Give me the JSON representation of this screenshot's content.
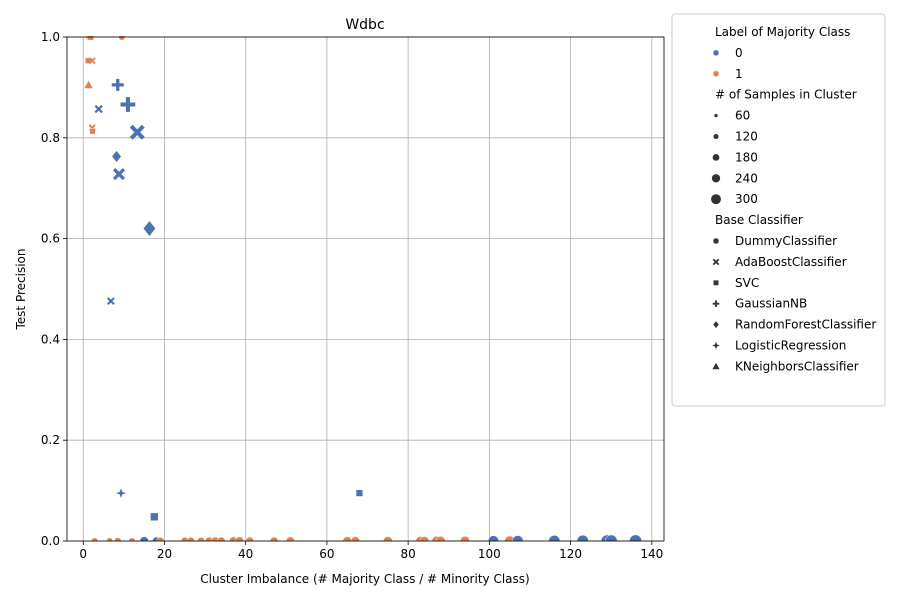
{
  "chart_data": {
    "type": "scatter",
    "title": "Wdbc",
    "xlabel": "Cluster Imbalance (# Majority Class / # Minority Class)",
    "ylabel": "Test Precision",
    "xlim": [
      -4,
      143
    ],
    "ylim": [
      0,
      1
    ],
    "xticks": [
      0,
      20,
      40,
      60,
      80,
      100,
      120,
      140
    ],
    "yticks": [
      0.0,
      0.2,
      0.4,
      0.6,
      0.8,
      1.0
    ],
    "xtick_labels": [
      "0",
      "20",
      "40",
      "60",
      "80",
      "100",
      "120",
      "140"
    ],
    "ytick_labels": [
      "0.0",
      "0.2",
      "0.4",
      "0.6",
      "0.8",
      "1.0"
    ],
    "grid": true,
    "legend_position": "outside-right",
    "colors": {
      "0": "#4c72b0",
      "1": "#dd8452"
    },
    "legend": {
      "hue_title": "Label of Majority Class",
      "hue_items": [
        "0",
        "1"
      ],
      "size_title": "# of Samples in Cluster",
      "size_items": [
        "60",
        "120",
        "180",
        "240",
        "300"
      ],
      "style_title": "Base Classifier",
      "style_items": [
        {
          "label": "DummyClassifier",
          "marker": "circle"
        },
        {
          "label": "AdaBoostClassifier",
          "marker": "x"
        },
        {
          "label": "SVC",
          "marker": "square"
        },
        {
          "label": "GaussianNB",
          "marker": "plus"
        },
        {
          "label": "RandomForestClassifier",
          "marker": "diamond"
        },
        {
          "label": "LogisticRegression",
          "marker": "star"
        },
        {
          "label": "KNeighborsClassifier",
          "marker": "triangle"
        }
      ]
    },
    "points": [
      {
        "x": 1.5,
        "y": 1.0,
        "label": "1",
        "clf": "DummyClassifier",
        "n": 40
      },
      {
        "x": 1.8,
        "y": 1.0,
        "label": "1",
        "clf": "SVC",
        "n": 40
      },
      {
        "x": 9.5,
        "y": 1.0,
        "label": "1",
        "clf": "DummyClassifier",
        "n": 30
      },
      {
        "x": 1.2,
        "y": 0.953,
        "label": "1",
        "clf": "SVC",
        "n": 30
      },
      {
        "x": 2.2,
        "y": 0.953,
        "label": "1",
        "clf": "AdaBoostClassifier",
        "n": 30
      },
      {
        "x": 1.3,
        "y": 0.905,
        "label": "1",
        "clf": "KNeighborsClassifier",
        "n": 40
      },
      {
        "x": 2.2,
        "y": 0.82,
        "label": "1",
        "clf": "AdaBoostClassifier",
        "n": 30
      },
      {
        "x": 2.3,
        "y": 0.813,
        "label": "1",
        "clf": "SVC",
        "n": 30
      },
      {
        "x": 8.5,
        "y": 0.905,
        "label": "0",
        "clf": "GaussianNB",
        "n": 150
      },
      {
        "x": 11.0,
        "y": 0.866,
        "label": "0",
        "clf": "GaussianNB",
        "n": 260
      },
      {
        "x": 3.8,
        "y": 0.857,
        "label": "0",
        "clf": "AdaBoostClassifier",
        "n": 50
      },
      {
        "x": 13.3,
        "y": 0.811,
        "label": "0",
        "clf": "AdaBoostClassifier",
        "n": 260
      },
      {
        "x": 8.2,
        "y": 0.763,
        "label": "0",
        "clf": "RandomForestClassifier",
        "n": 100
      },
      {
        "x": 8.8,
        "y": 0.728,
        "label": "0",
        "clf": "AdaBoostClassifier",
        "n": 150
      },
      {
        "x": 16.3,
        "y": 0.62,
        "label": "0",
        "clf": "RandomForestClassifier",
        "n": 210
      },
      {
        "x": 6.8,
        "y": 0.476,
        "label": "0",
        "clf": "AdaBoostClassifier",
        "n": 40
      },
      {
        "x": 9.3,
        "y": 0.095,
        "label": "0",
        "clf": "LogisticRegression",
        "n": 50
      },
      {
        "x": 68.0,
        "y": 0.095,
        "label": "0",
        "clf": "SVC",
        "n": 50
      },
      {
        "x": 17.5,
        "y": 0.048,
        "label": "0",
        "clf": "SVC",
        "n": 80
      },
      {
        "x": 2.8,
        "y": 0.0,
        "label": "1",
        "clf": "DummyClassifier",
        "n": 30
      },
      {
        "x": 6.5,
        "y": 0.0,
        "label": "1",
        "clf": "DummyClassifier",
        "n": 30
      },
      {
        "x": 8.5,
        "y": 0.0,
        "label": "1",
        "clf": "DummyClassifier",
        "n": 40
      },
      {
        "x": 12.0,
        "y": 0.0,
        "label": "1",
        "clf": "DummyClassifier",
        "n": 30
      },
      {
        "x": 15.0,
        "y": 0.0,
        "label": "0",
        "clf": "DummyClassifier",
        "n": 80
      },
      {
        "x": 18.0,
        "y": 0.0,
        "label": "0",
        "clf": "DummyClassifier",
        "n": 60
      },
      {
        "x": 19.0,
        "y": 0.0,
        "label": "1",
        "clf": "DummyClassifier",
        "n": 50
      },
      {
        "x": 25.0,
        "y": 0.0,
        "label": "1",
        "clf": "DummyClassifier",
        "n": 50
      },
      {
        "x": 26.5,
        "y": 0.0,
        "label": "1",
        "clf": "DummyClassifier",
        "n": 50
      },
      {
        "x": 29.0,
        "y": 0.0,
        "label": "1",
        "clf": "DummyClassifier",
        "n": 50
      },
      {
        "x": 31.0,
        "y": 0.0,
        "label": "1",
        "clf": "DummyClassifier",
        "n": 60
      },
      {
        "x": 32.5,
        "y": 0.0,
        "label": "1",
        "clf": "DummyClassifier",
        "n": 60
      },
      {
        "x": 34.0,
        "y": 0.0,
        "label": "1",
        "clf": "DummyClassifier",
        "n": 60
      },
      {
        "x": 37.0,
        "y": 0.0,
        "label": "1",
        "clf": "DummyClassifier",
        "n": 70
      },
      {
        "x": 38.5,
        "y": 0.0,
        "label": "1",
        "clf": "DummyClassifier",
        "n": 70
      },
      {
        "x": 41.0,
        "y": 0.0,
        "label": "1",
        "clf": "DummyClassifier",
        "n": 60
      },
      {
        "x": 47.0,
        "y": 0.0,
        "label": "1",
        "clf": "DummyClassifier",
        "n": 60
      },
      {
        "x": 51.0,
        "y": 0.0,
        "label": "1",
        "clf": "DummyClassifier",
        "n": 70
      },
      {
        "x": 65.0,
        "y": 0.0,
        "label": "1",
        "clf": "DummyClassifier",
        "n": 80
      },
      {
        "x": 67.0,
        "y": 0.0,
        "label": "1",
        "clf": "DummyClassifier",
        "n": 80
      },
      {
        "x": 75.0,
        "y": 0.0,
        "label": "1",
        "clf": "DummyClassifier",
        "n": 90
      },
      {
        "x": 83.0,
        "y": 0.0,
        "label": "1",
        "clf": "DummyClassifier",
        "n": 90
      },
      {
        "x": 84.0,
        "y": 0.0,
        "label": "1",
        "clf": "DummyClassifier",
        "n": 90
      },
      {
        "x": 87.0,
        "y": 0.0,
        "label": "1",
        "clf": "DummyClassifier",
        "n": 100
      },
      {
        "x": 88.0,
        "y": 0.0,
        "label": "1",
        "clf": "DummyClassifier",
        "n": 100
      },
      {
        "x": 94.0,
        "y": 0.0,
        "label": "1",
        "clf": "DummyClassifier",
        "n": 100
      },
      {
        "x": 101.0,
        "y": 0.0,
        "label": "0",
        "clf": "DummyClassifier",
        "n": 140
      },
      {
        "x": 105.0,
        "y": 0.0,
        "label": "1",
        "clf": "DummyClassifier",
        "n": 120
      },
      {
        "x": 107.0,
        "y": 0.0,
        "label": "0",
        "clf": "DummyClassifier",
        "n": 150
      },
      {
        "x": 116.0,
        "y": 0.0,
        "label": "0",
        "clf": "DummyClassifier",
        "n": 170
      },
      {
        "x": 123.0,
        "y": 0.0,
        "label": "0",
        "clf": "DummyClassifier",
        "n": 180
      },
      {
        "x": 129.0,
        "y": 0.0,
        "label": "0",
        "clf": "DummyClassifier",
        "n": 200
      },
      {
        "x": 130.0,
        "y": 0.0,
        "label": "0",
        "clf": "DummyClassifier",
        "n": 200
      },
      {
        "x": 136.0,
        "y": 0.0,
        "label": "0",
        "clf": "DummyClassifier",
        "n": 210
      }
    ]
  }
}
